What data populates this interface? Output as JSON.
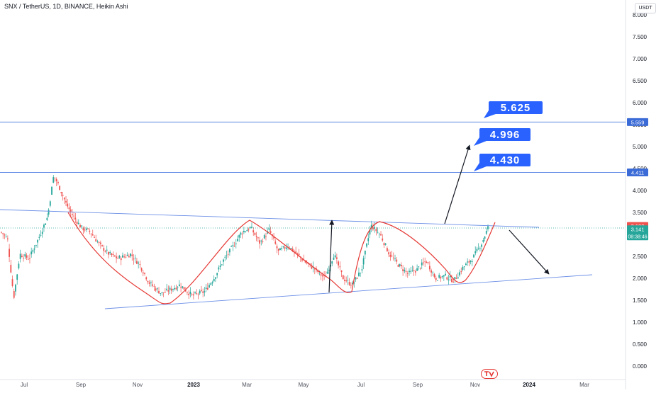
{
  "header": {
    "title": "SNX / TetherUS, 1D, BINANCE, Heikin Ashi",
    "currency": "USDT"
  },
  "chart_data": {
    "type": "candlestick",
    "title": "SNX / TetherUS, 1D, BINANCE, Heikin Ashi",
    "y_axis": {
      "min": 0,
      "max": 8,
      "ticks": [
        "8.000",
        "7.500",
        "7.000",
        "6.500",
        "6.000",
        "5.500",
        "5.000",
        "4.500",
        "4.000",
        "3.500",
        "3.000",
        "2.500",
        "2.000",
        "1.500",
        "1.000",
        "0.500",
        "0.000"
      ]
    },
    "x_axis": {
      "ticks": [
        "Jul",
        "Sep",
        "Nov",
        "2023",
        "Mar",
        "May",
        "Jul",
        "Sep",
        "Nov",
        "2024",
        "Mar"
      ]
    },
    "horizontal_levels": [
      {
        "value": 5.559,
        "label": "5.559"
      },
      {
        "value": 4.411,
        "label": "4.411"
      }
    ],
    "price_labels": {
      "last": "3.183",
      "current": "3.141",
      "countdown": "08:38:46"
    },
    "targets": [
      "5.625",
      "4.996",
      "4.430"
    ],
    "price_path": [
      [
        0,
        3.05
      ],
      [
        0.01,
        2.9
      ],
      [
        0.02,
        1.55
      ],
      [
        0.03,
        2.55
      ],
      [
        0.045,
        2.45
      ],
      [
        0.06,
        2.9
      ],
      [
        0.075,
        3.4
      ],
      [
        0.085,
        4.35
      ],
      [
        0.095,
        4.05
      ],
      [
        0.105,
        3.7
      ],
      [
        0.115,
        3.45
      ],
      [
        0.13,
        3.15
      ],
      [
        0.145,
        3.05
      ],
      [
        0.16,
        2.75
      ],
      [
        0.175,
        2.55
      ],
      [
        0.19,
        2.45
      ],
      [
        0.21,
        2.55
      ],
      [
        0.225,
        2.3
      ],
      [
        0.24,
        1.9
      ],
      [
        0.26,
        1.65
      ],
      [
        0.275,
        1.75
      ],
      [
        0.29,
        1.85
      ],
      [
        0.31,
        1.6
      ],
      [
        0.33,
        1.7
      ],
      [
        0.345,
        2.0
      ],
      [
        0.36,
        2.4
      ],
      [
        0.375,
        2.7
      ],
      [
        0.39,
        3.05
      ],
      [
        0.405,
        3.15
      ],
      [
        0.42,
        2.8
      ],
      [
        0.435,
        3.1
      ],
      [
        0.45,
        2.6
      ],
      [
        0.465,
        2.75
      ],
      [
        0.48,
        2.55
      ],
      [
        0.495,
        2.35
      ],
      [
        0.51,
        2.2
      ],
      [
        0.525,
        2.0
      ],
      [
        0.54,
        2.55
      ],
      [
        0.555,
        2.0
      ],
      [
        0.57,
        1.85
      ],
      [
        0.585,
        2.2
      ],
      [
        0.6,
        3.2
      ],
      [
        0.615,
        3.0
      ],
      [
        0.63,
        2.55
      ],
      [
        0.645,
        2.3
      ],
      [
        0.66,
        2.1
      ],
      [
        0.675,
        2.2
      ],
      [
        0.69,
        2.4
      ],
      [
        0.705,
        2.0
      ],
      [
        0.72,
        2.05
      ],
      [
        0.735,
        1.95
      ],
      [
        0.75,
        2.25
      ],
      [
        0.765,
        2.45
      ],
      [
        0.78,
        2.8
      ],
      [
        0.79,
        3.15
      ]
    ]
  }
}
